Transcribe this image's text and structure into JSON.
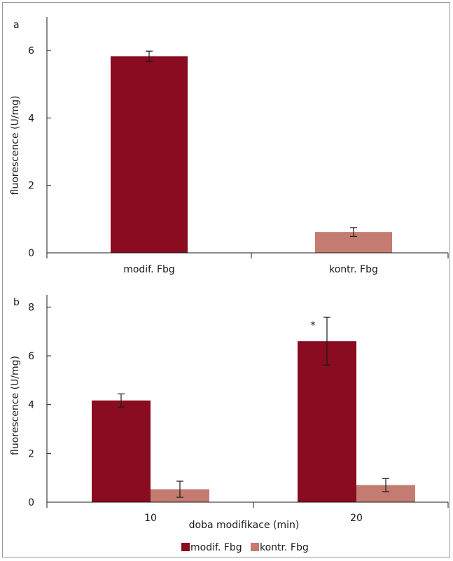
{
  "colors": {
    "modif": "#8a0c20",
    "kontr": "#c47c70",
    "axis": "#1a1a1a"
  },
  "chart_data": [
    {
      "type": "bar",
      "panel_label": "a",
      "ylabel": "fluorescence (U/mg)",
      "xlabel": "",
      "ylim": [
        0,
        7
      ],
      "yticks": [
        0,
        2,
        4,
        6
      ],
      "categories": [
        "modif. Fbg",
        "kontr. Fbg"
      ],
      "bars": [
        {
          "category": "modif. Fbg",
          "value": 5.83,
          "error": 0.15,
          "color_key": "modif"
        },
        {
          "category": "kontr. Fbg",
          "value": 0.62,
          "error": 0.13,
          "color_key": "kontr"
        }
      ]
    },
    {
      "type": "bar",
      "panel_label": "b",
      "ylabel": "fluorescence (U/mg)",
      "xlabel": "doba modifikace (min)",
      "ylim": [
        0,
        8.5
      ],
      "yticks": [
        0,
        2,
        4,
        6,
        8
      ],
      "categories": [
        "10",
        "20"
      ],
      "series": [
        {
          "name": "modif. Fbg",
          "color_key": "modif",
          "values": [
            4.17,
            6.6
          ],
          "errors": [
            0.27,
            0.98
          ]
        },
        {
          "name": "kontr. Fbg",
          "color_key": "kontr",
          "values": [
            0.53,
            0.7
          ],
          "errors": [
            0.33,
            0.27
          ]
        }
      ],
      "annotations": [
        {
          "text": "*",
          "category": "20",
          "series": "modif. Fbg"
        }
      ],
      "legend": {
        "position": "bottom",
        "entries": [
          "modif. Fbg",
          "kontr. Fbg"
        ]
      }
    }
  ]
}
